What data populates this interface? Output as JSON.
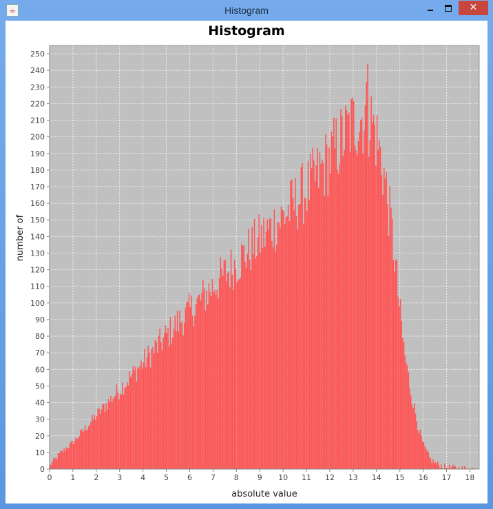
{
  "window": {
    "title": "Histogram",
    "icon": "java-icon",
    "close_glyph": "✕"
  },
  "chart_data": {
    "type": "bar",
    "title": "Histogram",
    "xlabel": "absolute value",
    "ylabel": "number of",
    "xlim": [
      0,
      18.4
    ],
    "ylim": [
      0,
      255
    ],
    "xticks": [
      0,
      1,
      2,
      3,
      4,
      5,
      6,
      7,
      8,
      9,
      10,
      11,
      12,
      13,
      14,
      15,
      16,
      17,
      18
    ],
    "yticks": [
      0,
      10,
      20,
      30,
      40,
      50,
      60,
      70,
      80,
      90,
      100,
      110,
      120,
      130,
      140,
      150,
      160,
      170,
      180,
      190,
      200,
      210,
      220,
      230,
      240,
      250
    ],
    "grid": true,
    "bar_color": "#ff5555",
    "plot_background": "#c0c0c0",
    "bin_width": 0.05,
    "envelope": {
      "x": [
        0,
        0.5,
        1,
        1.5,
        2,
        2.5,
        3,
        3.5,
        4,
        4.5,
        5,
        5.5,
        6,
        6.5,
        7,
        7.5,
        8,
        8.5,
        9,
        9.5,
        10,
        10.5,
        11,
        11.5,
        12,
        12.5,
        13,
        13.5,
        13.8,
        14,
        14.3,
        14.6,
        14.8,
        15,
        15.2,
        15.5,
        15.8,
        16,
        16.3,
        16.6,
        17,
        17.5,
        18
      ],
      "y": [
        2,
        10,
        16,
        24,
        32,
        40,
        48,
        56,
        64,
        72,
        80,
        88,
        95,
        102,
        110,
        117,
        124,
        131,
        138,
        145,
        152,
        160,
        168,
        177,
        187,
        198,
        208,
        213,
        210,
        200,
        180,
        150,
        125,
        95,
        70,
        45,
        25,
        15,
        6,
        3,
        1,
        0.5,
        0
      ]
    },
    "peak": {
      "x": 13.6,
      "y": 244
    }
  }
}
